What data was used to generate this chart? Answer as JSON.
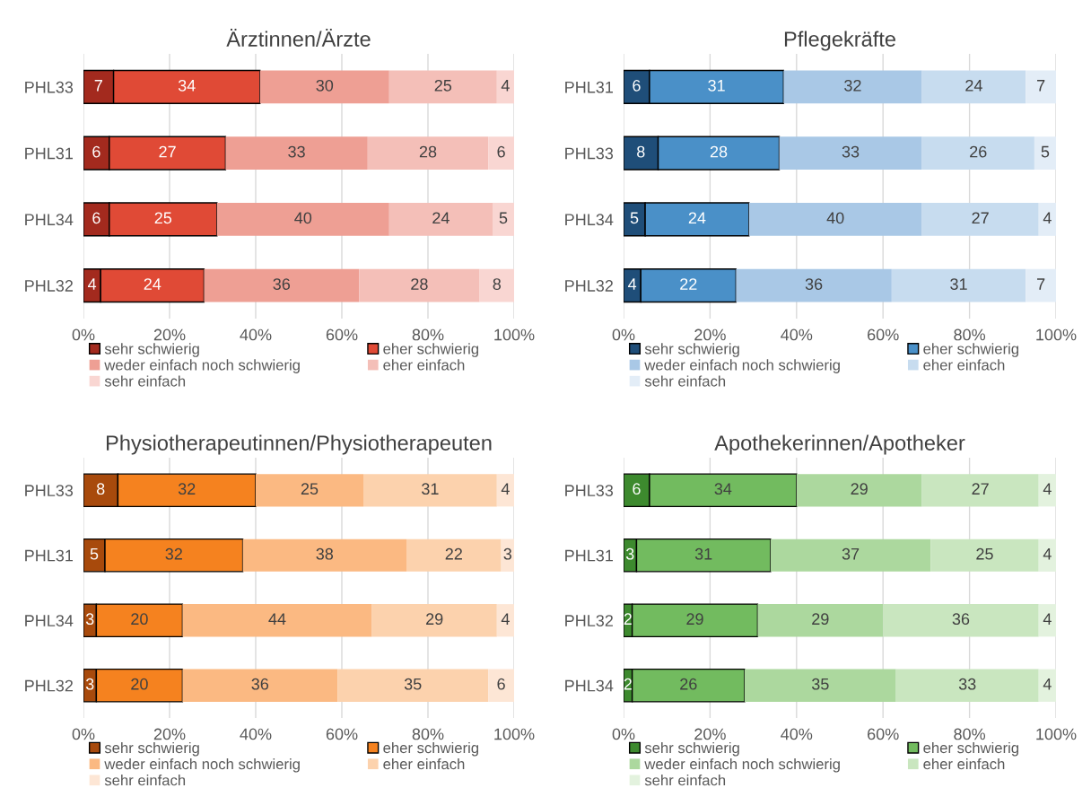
{
  "chart_data": [
    {
      "type": "bar",
      "title": "Ärztinnen/Ärzte",
      "orientation": "horizontal",
      "stacked": true,
      "data_labels": true,
      "grid": "x",
      "legend": "bottom",
      "xlim": [
        0,
        100
      ],
      "xticks": [
        {
          "value": 0,
          "label": "0%"
        },
        {
          "value": 20,
          "label": "20%"
        },
        {
          "value": 40,
          "label": "40%"
        },
        {
          "value": 60,
          "label": "60%"
        },
        {
          "value": 80,
          "label": "80%"
        },
        {
          "value": 100,
          "label": "100%"
        }
      ],
      "categories": [
        "PHL33",
        "PHL31",
        "PHL34",
        "PHL32"
      ],
      "series": [
        {
          "name": "sehr schwierig",
          "color": "#a32a1e",
          "values": [
            7,
            6,
            6,
            4
          ]
        },
        {
          "name": "eher schwierig",
          "color": "#e04a36",
          "values": [
            34,
            27,
            25,
            24
          ]
        },
        {
          "name": "weder einfach noch schwierig",
          "color": "#ee9f94",
          "values": [
            30,
            33,
            40,
            36
          ]
        },
        {
          "name": "eher einfach",
          "color": "#f4bfb8",
          "values": [
            25,
            28,
            24,
            28
          ]
        },
        {
          "name": "sehr einfach",
          "color": "#f9d6d2",
          "values": [
            4,
            6,
            5,
            8
          ]
        }
      ]
    },
    {
      "type": "bar",
      "title": "Pflegekräfte",
      "orientation": "horizontal",
      "stacked": true,
      "data_labels": true,
      "grid": "x",
      "legend": "bottom",
      "xlim": [
        0,
        100
      ],
      "xticks": [
        {
          "value": 0,
          "label": "0%"
        },
        {
          "value": 20,
          "label": "20%"
        },
        {
          "value": 40,
          "label": "40%"
        },
        {
          "value": 60,
          "label": "60%"
        },
        {
          "value": 80,
          "label": "80%"
        },
        {
          "value": 100,
          "label": "100%"
        }
      ],
      "categories": [
        "PHL31",
        "PHL33",
        "PHL34",
        "PHL32"
      ],
      "series": [
        {
          "name": "sehr schwierig",
          "color": "#1f4e79",
          "values": [
            6,
            8,
            5,
            4
          ]
        },
        {
          "name": "eher schwierig",
          "color": "#4a90c8",
          "values": [
            31,
            28,
            24,
            22
          ]
        },
        {
          "name": "weder einfach noch schwierig",
          "color": "#a9c8e6",
          "values": [
            32,
            33,
            40,
            36
          ]
        },
        {
          "name": "eher einfach",
          "color": "#c7dcef",
          "values": [
            24,
            26,
            27,
            31
          ]
        },
        {
          "name": "sehr einfach",
          "color": "#e3edf7",
          "values": [
            7,
            5,
            4,
            7
          ]
        }
      ]
    },
    {
      "type": "bar",
      "title": "Physiotherapeutinnen/Physiotherapeuten",
      "orientation": "horizontal",
      "stacked": true,
      "data_labels": true,
      "grid": "x",
      "legend": "bottom",
      "xlim": [
        0,
        100
      ],
      "xticks": [
        {
          "value": 0,
          "label": "0%"
        },
        {
          "value": 20,
          "label": "20%"
        },
        {
          "value": 40,
          "label": "40%"
        },
        {
          "value": 60,
          "label": "60%"
        },
        {
          "value": 80,
          "label": "80%"
        },
        {
          "value": 100,
          "label": "100%"
        }
      ],
      "categories": [
        "PHL33",
        "PHL31",
        "PHL34",
        "PHL32"
      ],
      "series": [
        {
          "name": "sehr schwierig",
          "color": "#a84a0c",
          "values": [
            8,
            5,
            3,
            3
          ]
        },
        {
          "name": "eher schwierig",
          "color": "#f5821f",
          "values": [
            32,
            32,
            20,
            20
          ]
        },
        {
          "name": "weder einfach noch schwierig",
          "color": "#fbb982",
          "values": [
            25,
            38,
            44,
            36
          ]
        },
        {
          "name": "eher einfach",
          "color": "#fcd2ad",
          "values": [
            31,
            22,
            29,
            35
          ]
        },
        {
          "name": "sehr einfach",
          "color": "#fde6d5",
          "values": [
            4,
            3,
            4,
            6
          ]
        }
      ]
    },
    {
      "type": "bar",
      "title": "Apothekerinnen/Apotheker",
      "orientation": "horizontal",
      "stacked": true,
      "data_labels": true,
      "grid": "x",
      "legend": "bottom",
      "xlim": [
        0,
        100
      ],
      "xticks": [
        {
          "value": 0,
          "label": "0%"
        },
        {
          "value": 20,
          "label": "20%"
        },
        {
          "value": 40,
          "label": "40%"
        },
        {
          "value": 60,
          "label": "60%"
        },
        {
          "value": 80,
          "label": "80%"
        },
        {
          "value": 100,
          "label": "100%"
        }
      ],
      "categories": [
        "PHL33",
        "PHL31",
        "PHL32",
        "PHL34"
      ],
      "series": [
        {
          "name": "sehr schwierig",
          "color": "#3d8a2e",
          "values": [
            6,
            3,
            2,
            2
          ]
        },
        {
          "name": "eher schwierig",
          "color": "#72bb5f",
          "values": [
            34,
            31,
            29,
            26
          ]
        },
        {
          "name": "weder einfach noch schwierig",
          "color": "#acd89e",
          "values": [
            29,
            37,
            29,
            35
          ]
        },
        {
          "name": "eher einfach",
          "color": "#c9e6bf",
          "values": [
            27,
            25,
            36,
            33
          ]
        },
        {
          "name": "sehr einfach",
          "color": "#e3f2de",
          "values": [
            4,
            4,
            4,
            4
          ]
        }
      ]
    }
  ]
}
